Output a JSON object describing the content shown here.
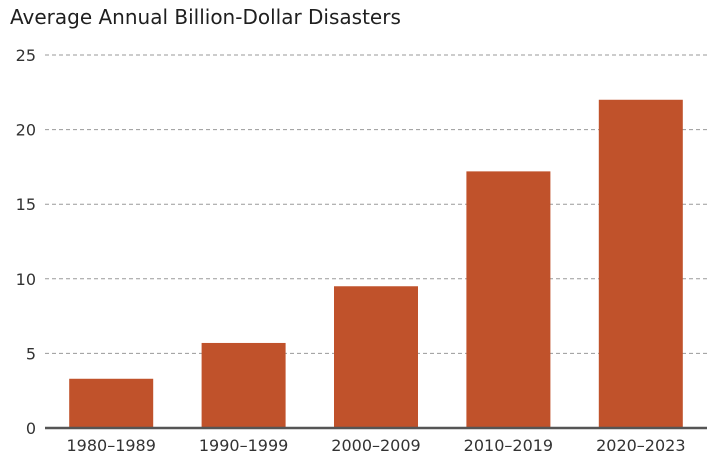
{
  "chart_data": {
    "type": "bar",
    "title": "Average Annual Billion-Dollar Disasters",
    "xlabel": "",
    "ylabel": "",
    "categories": [
      "1980–1989",
      "1990–1999",
      "2000–2009",
      "2010–2019",
      "2020–2023"
    ],
    "values": [
      3.3,
      5.7,
      9.5,
      17.2,
      22.0
    ],
    "ylim": [
      0,
      25
    ],
    "yticks": [
      "0",
      "5",
      "10",
      "15",
      "20",
      "25"
    ],
    "grid": "horizontal dashed",
    "bar_color": "#c0522b",
    "legend": "none"
  }
}
